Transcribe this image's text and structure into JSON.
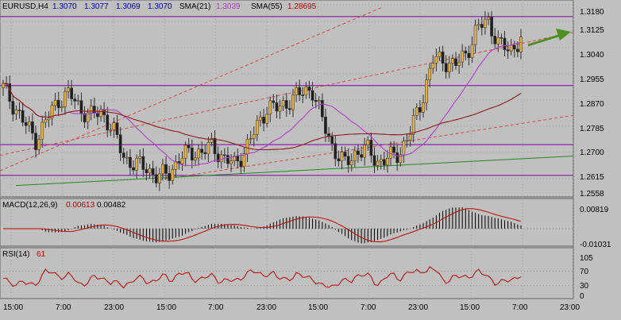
{
  "symbol_label": "EURUSD,H4",
  "ohlc": [
    "1.3070",
    "1.3077",
    "1.3069",
    "1.3070"
  ],
  "sma21_label": "SMA(21)",
  "sma21_value": "1.3039",
  "sma55_label": "SMA(55)",
  "sma55_value": "1.28695",
  "macd_label": "MACD(12,26,9)",
  "macd_value1": "0.00613",
  "macd_value2": "0.00482",
  "rsi_label": "RSI(14)",
  "rsi_value": "61",
  "colors": {
    "background": "#c0c0c0",
    "bull_candle": "#e8b03a",
    "bear_candle": "#202020",
    "sma21": "#b040c8",
    "sma55": "#8b1a1a",
    "channel": "#d24a4a",
    "hlines": "#7a00a0",
    "support": "#1f8a1f",
    "arrow": "#4f8f1f",
    "macd_signal": "#c00000",
    "rsi_line": "#c00000"
  },
  "chart_data": [
    {
      "type": "candlestick",
      "title": "EURUSD,H4",
      "y_ticks": [
        "1.3180",
        "1.3125",
        "1.3040",
        "1.2955",
        "1.2870",
        "1.2785",
        "1.2700",
        "1.2615",
        "1.2558"
      ],
      "x_ticks": [
        "15:00",
        "7:00",
        "23:00",
        "15:00",
        "7:00",
        "23:00",
        "15:00",
        "7:00",
        "23:00",
        "15:00",
        "7:00",
        "23:00"
      ],
      "ylim": [
        1.2555,
        1.3195
      ],
      "horizontal_levels": [
        1.3141,
        1.2917,
        1.2725,
        1.2625
      ],
      "series": [
        {
          "name": "SMA(21)",
          "last": 1.3039
        },
        {
          "name": "SMA(55)",
          "last": 1.28695
        }
      ],
      "close_path": [
        1.291,
        1.285,
        1.279,
        1.274,
        1.281,
        1.287,
        1.289,
        1.284,
        1.282,
        1.283,
        1.277,
        1.268,
        1.266,
        1.265,
        1.262,
        1.263,
        1.268,
        1.27,
        1.27,
        1.272,
        1.268,
        1.266,
        1.271,
        1.278,
        1.285,
        1.284,
        1.287,
        1.289,
        1.291,
        1.28,
        1.271,
        1.266,
        1.27,
        1.271,
        1.267,
        1.268,
        1.27,
        1.277,
        1.287,
        1.3,
        1.3,
        1.298,
        1.302,
        1.31,
        1.313,
        1.305,
        1.303,
        1.307
      ]
    },
    {
      "type": "histogram",
      "title": "MACD(12,26,9)",
      "y_ticks": [
        "0.00819",
        "-0.01031"
      ],
      "last_values": [
        0.00613,
        0.00482
      ]
    },
    {
      "type": "line",
      "title": "RSI(14)",
      "y_ticks": [
        "105",
        "70",
        "30",
        "0"
      ],
      "ylim": [
        0,
        105
      ],
      "levels": [
        70,
        30
      ],
      "last": 61
    }
  ]
}
